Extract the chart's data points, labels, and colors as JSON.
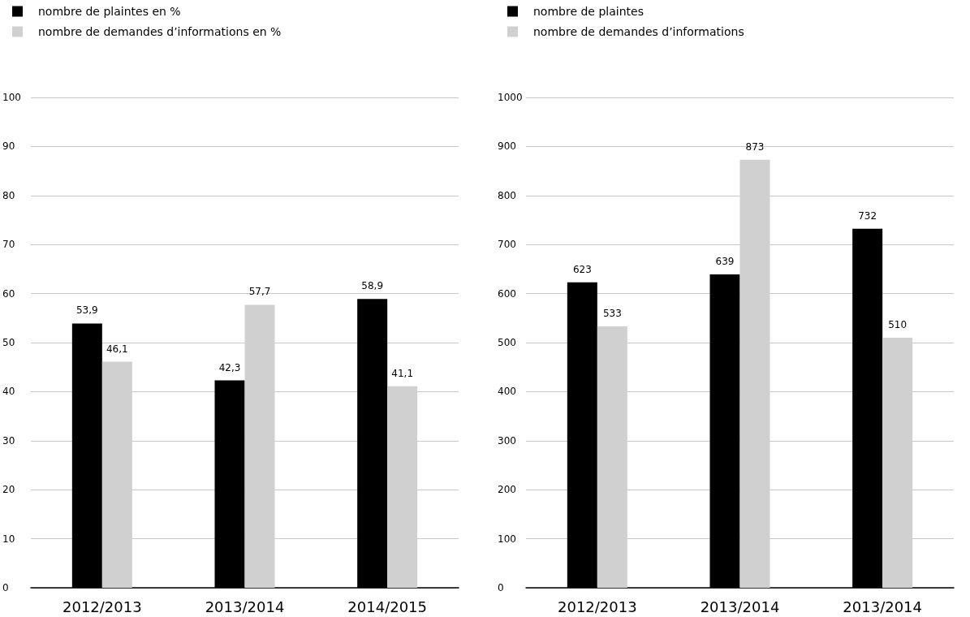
{
  "chart_data": [
    {
      "type": "bar",
      "categories": [
        "2012/2013",
        "2013/2014",
        "2014/2015"
      ],
      "series": [
        {
          "name": "nombre de plaintes en %",
          "color": "#000000",
          "values": [
            53.9,
            42.3,
            58.9
          ],
          "value_labels": [
            "53,9",
            "42,3",
            "58,9"
          ]
        },
        {
          "name": "nombre de demandes d’informations en %",
          "color": "#d0d0d0",
          "values": [
            46.1,
            57.7,
            41.1
          ],
          "value_labels": [
            "46,1",
            "57,7",
            "41,1"
          ]
        }
      ],
      "ylim": [
        0,
        100
      ],
      "yticks": [
        0,
        10,
        20,
        30,
        40,
        50,
        60,
        70,
        80,
        90,
        100
      ],
      "grid": "y",
      "legend": "top left"
    },
    {
      "type": "bar",
      "categories": [
        "2012/2013",
        "2013/2014",
        "2013/2014"
      ],
      "series": [
        {
          "name": "nombre de plaintes",
          "color": "#000000",
          "values": [
            623,
            639,
            732
          ]
        },
        {
          "name": "nombre de demandes d’informations",
          "color": "#d0d0d0",
          "values": [
            533,
            873,
            510
          ]
        }
      ],
      "ylim": [
        0,
        1000
      ],
      "yticks": [
        0,
        100,
        200,
        300,
        400,
        500,
        600,
        700,
        800,
        900,
        1000
      ],
      "grid": "y",
      "legend": "top left",
      "data_labels": true
    }
  ]
}
